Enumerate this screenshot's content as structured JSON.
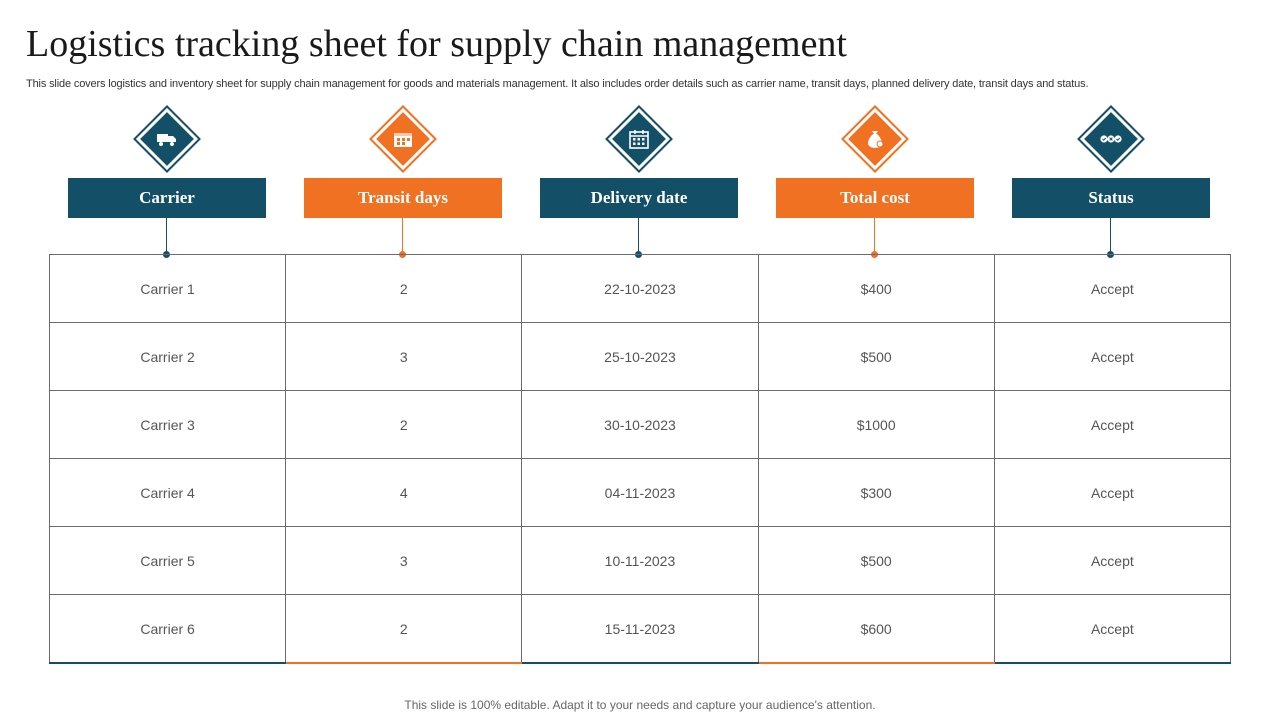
{
  "title": "Logistics tracking sheet for supply chain management",
  "subtitle": "This slide covers logistics and inventory sheet for supply chain management for goods and materials management. It also includes order details such as carrier name, transit days, planned delivery date, transit days and status.",
  "colors": {
    "teal": "#134f67",
    "orange": "#f07122"
  },
  "columns": [
    {
      "label": "Carrier",
      "icon": "truck-icon",
      "color": "teal"
    },
    {
      "label": "Transit days",
      "icon": "calendar-grid-icon",
      "color": "orange"
    },
    {
      "label": "Delivery date",
      "icon": "calendar-icon",
      "color": "teal"
    },
    {
      "label": "Total cost",
      "icon": "money-bag-icon",
      "color": "orange"
    },
    {
      "label": "Status",
      "icon": "status-check-icon",
      "color": "teal"
    }
  ],
  "rows": [
    [
      "Carrier 1",
      "2",
      "22-10-2023",
      "$400",
      "Accept"
    ],
    [
      "Carrier 2",
      "3",
      "25-10-2023",
      "$500",
      "Accept"
    ],
    [
      "Carrier 3",
      "2",
      "30-10-2023",
      "$1000",
      "Accept"
    ],
    [
      "Carrier 4",
      "4",
      "04-11-2023",
      "$300",
      "Accept"
    ],
    [
      "Carrier 5",
      "3",
      "10-11-2023",
      "$500",
      "Accept"
    ],
    [
      "Carrier 6",
      "2",
      "15-11-2023",
      "$600",
      "Accept"
    ]
  ],
  "footer": "This slide is 100% editable. Adapt it to your needs and capture your audience's attention."
}
